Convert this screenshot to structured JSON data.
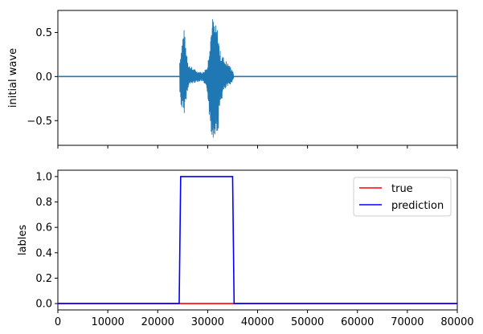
{
  "chart_data": [
    {
      "type": "line",
      "title": "",
      "xlabel": "",
      "ylabel": "initial wave",
      "xlim": [
        0,
        80000
      ],
      "ylim": [
        -0.78,
        0.75
      ],
      "yticks": [
        -0.5,
        0.0,
        0.5
      ],
      "ytick_labels": [
        "−0.5",
        "0.0",
        "0.5"
      ],
      "xticks": [
        0,
        10000,
        20000,
        30000,
        40000,
        50000,
        60000,
        70000,
        80000
      ],
      "xtick_labels_visible": false,
      "grid": false,
      "series": [
        {
          "color": "#1f77b4",
          "segments": [
            {
              "x_start": 24400,
              "x_end": 29000,
              "amplitude": [
                [
                  24400,
                  0.2
                ],
                [
                  24700,
                  0.32
                ],
                [
                  25200,
                  0.58
                ],
                [
                  25600,
                  0.38
                ],
                [
                  26200,
                  0.14
                ],
                [
                  27000,
                  0.1
                ],
                [
                  28000,
                  0.06
                ],
                [
                  29000,
                  0.05
                ]
              ],
              "min_amplitude": [
                [
                  24400,
                  -0.2
                ],
                [
                  24700,
                  -0.35
                ],
                [
                  25200,
                  -0.47
                ],
                [
                  25600,
                  -0.3
                ],
                [
                  26200,
                  -0.1
                ],
                [
                  27000,
                  -0.08
                ],
                [
                  28000,
                  -0.06
                ],
                [
                  29000,
                  -0.05
                ]
              ]
            },
            {
              "x_start": 29000,
              "x_end": 35200,
              "amplitude": [
                [
                  29000,
                  0.05
                ],
                [
                  30000,
                  0.12
                ],
                [
                  30500,
                  0.5
                ],
                [
                  31000,
                  0.68
                ],
                [
                  31500,
                  0.6
                ],
                [
                  32000,
                  0.55
                ],
                [
                  32500,
                  0.3
                ],
                [
                  33200,
                  0.22
                ],
                [
                  34000,
                  0.16
                ],
                [
                  35000,
                  0.08
                ],
                [
                  35200,
                  0.02
                ]
              ],
              "min_amplitude": [
                [
                  29000,
                  -0.05
                ],
                [
                  30000,
                  -0.2
                ],
                [
                  30500,
                  -0.6
                ],
                [
                  31000,
                  -0.72
                ],
                [
                  31500,
                  -0.65
                ],
                [
                  32000,
                  -0.7
                ],
                [
                  32500,
                  -0.35
                ],
                [
                  33200,
                  -0.18
                ],
                [
                  34000,
                  -0.12
                ],
                [
                  35000,
                  -0.06
                ],
                [
                  35200,
                  -0.02
                ]
              ]
            }
          ]
        }
      ]
    },
    {
      "type": "line",
      "title": "",
      "xlabel": "",
      "ylabel": "lables",
      "xlim": [
        0,
        80000
      ],
      "ylim": [
        -0.05,
        1.05
      ],
      "yticks": [
        0.0,
        0.2,
        0.4,
        0.6,
        0.8,
        1.0
      ],
      "ytick_labels": [
        "0.0",
        "0.2",
        "0.4",
        "0.6",
        "0.8",
        "1.0"
      ],
      "xticks": [
        0,
        10000,
        20000,
        30000,
        40000,
        50000,
        60000,
        70000,
        80000
      ],
      "xtick_labels": [
        "0",
        "10000",
        "20000",
        "30000",
        "40000",
        "50000",
        "60000",
        "70000",
        "80000"
      ],
      "grid": false,
      "legend_position": "top-right",
      "series": [
        {
          "name": "true",
          "color": "#ff0000",
          "x": [
            0,
            80000
          ],
          "y": [
            0,
            0
          ]
        },
        {
          "name": "prediction",
          "color": "#0000ff",
          "x": [
            0,
            24300,
            24600,
            35000,
            35300,
            80000
          ],
          "y": [
            0,
            0,
            1,
            1,
            0,
            0
          ]
        }
      ]
    }
  ]
}
